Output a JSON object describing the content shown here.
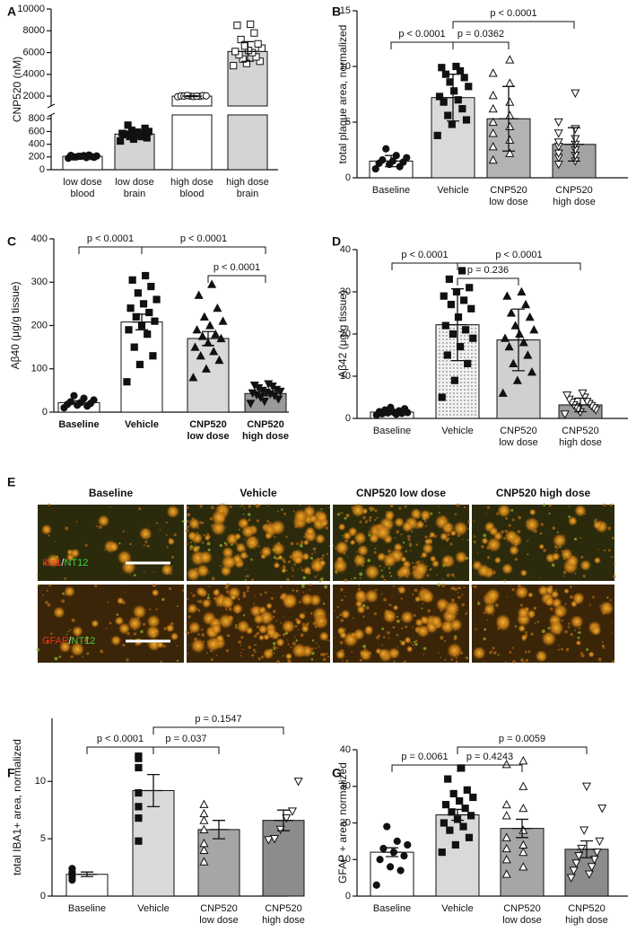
{
  "chart_data": [
    {
      "type": "bar",
      "panel_label": "A",
      "ylabel": "CNP520 (nM)",
      "categories": [
        [
          "low dose",
          "blood"
        ],
        [
          "low dose",
          "brain"
        ],
        [
          "high dose",
          "blood"
        ],
        [
          "high dose",
          "brain"
        ]
      ],
      "values": [
        210,
        560,
        2000,
        6100
      ],
      "errors": [
        20,
        60,
        40,
        900
      ],
      "colors": [
        "#ffffff",
        "#d4d4d4",
        "#ffffff",
        "#d4d4d4"
      ],
      "markers": [
        {
          "shape": "circle",
          "filled": true
        },
        {
          "shape": "square",
          "filled": true
        },
        {
          "shape": "circle",
          "filled": false
        },
        {
          "shape": "square",
          "filled": false
        }
      ],
      "points": [
        [
          180,
          190,
          200,
          205,
          210,
          215,
          220,
          225,
          230,
          200,
          195,
          210
        ],
        [
          450,
          480,
          500,
          520,
          540,
          550,
          560,
          570,
          580,
          600,
          620,
          650,
          700,
          520,
          560,
          590
        ],
        [
          1950,
          1980,
          2000,
          2020,
          2050,
          1970,
          2010,
          2030,
          1990,
          2060
        ],
        [
          4800,
          5000,
          5200,
          5400,
          5600,
          5800,
          6000,
          6100,
          6200,
          6400,
          6600,
          6800,
          7200,
          7800,
          8500,
          8600
        ]
      ],
      "segments": [
        {
          "ylim": [
            0,
            860
          ],
          "yticks": [
            0,
            200,
            400,
            600,
            800
          ]
        },
        {
          "ylim": [
            1100,
            10000
          ],
          "yticks": [
            2000,
            4000,
            6000,
            8000,
            10000
          ]
        }
      ],
      "brackets": []
    },
    {
      "type": "bar",
      "panel_label": "B",
      "ylabel": "total plaque area, normalized",
      "categories": [
        [
          "Baseline"
        ],
        [
          "Vehicle"
        ],
        [
          "CNP520",
          "low dose"
        ],
        [
          "CNP520",
          "high dose"
        ]
      ],
      "values": [
        1.5,
        7.2,
        5.3,
        3.0
      ],
      "errors": [
        0.5,
        2.1,
        2.9,
        1.5
      ],
      "colors": [
        "#ffffff",
        "#d9d9d9",
        "#b3b3b3",
        "#a3a3a3"
      ],
      "markers": [
        {
          "shape": "circle",
          "filled": true
        },
        {
          "shape": "square",
          "filled": true
        },
        {
          "shape": "triangle-up",
          "filled": false
        },
        {
          "shape": "triangle-down",
          "filled": false
        }
      ],
      "points": [
        [
          0.8,
          1.0,
          1.2,
          1.3,
          1.4,
          1.5,
          1.6,
          1.8,
          2.0,
          2.6
        ],
        [
          3.8,
          4.8,
          5.2,
          5.6,
          6.2,
          6.8,
          7.0,
          7.3,
          7.8,
          8.2,
          8.6,
          9.0,
          9.3,
          9.6,
          9.9,
          10.0
        ],
        [
          1.6,
          2.2,
          2.8,
          3.4,
          4.0,
          4.6,
          5.0,
          5.6,
          6.2,
          6.8,
          7.4,
          8.5,
          9.4,
          10.6
        ],
        [
          1.2,
          1.5,
          1.8,
          2.0,
          2.2,
          2.5,
          2.8,
          3.0,
          3.2,
          3.5,
          4.0,
          4.4,
          5.0,
          7.6
        ]
      ],
      "ylim": [
        0,
        15
      ],
      "yticks": [
        0,
        5,
        10,
        15
      ],
      "brackets": [
        {
          "pair": [
            0,
            1
          ],
          "label": "p < 0.0001"
        },
        {
          "pair": [
            1,
            2
          ],
          "label": "p = 0.0362"
        },
        {
          "pair": [
            1,
            3
          ],
          "label": "p < 0.0001"
        }
      ]
    },
    {
      "type": "bar",
      "panel_label": "C",
      "ylabel": "Aβ40 (μg/g tissue)",
      "bold_categories": true,
      "categories": [
        [
          "Baseline"
        ],
        [
          "Vehicle"
        ],
        [
          "CNP520",
          "low dose"
        ],
        [
          "CNP520",
          "high dose"
        ]
      ],
      "values": [
        22,
        208,
        170,
        43
      ],
      "errors": [
        4,
        18,
        16,
        5
      ],
      "colors": [
        "#ffffff",
        "#ffffff",
        "#d9d9d9",
        "#9a9a9a"
      ],
      "markers": [
        {
          "shape": "circle",
          "filled": true
        },
        {
          "shape": "square",
          "filled": true
        },
        {
          "shape": "triangle-up",
          "filled": true
        },
        {
          "shape": "triangle-down",
          "filled": true
        }
      ],
      "points": [
        [
          10,
          14,
          16,
          18,
          20,
          22,
          24,
          28,
          32,
          38
        ],
        [
          70,
          110,
          130,
          150,
          180,
          190,
          200,
          210,
          220,
          230,
          240,
          250,
          260,
          275,
          290,
          305,
          315
        ],
        [
          80,
          100,
          120,
          130,
          140,
          150,
          160,
          170,
          175,
          180,
          190,
          200,
          210,
          220,
          240,
          270,
          295
        ],
        [
          20,
          25,
          30,
          34,
          38,
          40,
          42,
          44,
          46,
          48,
          50,
          52,
          56,
          60,
          62,
          65
        ]
      ],
      "ylim": [
        0,
        400
      ],
      "yticks": [
        0,
        100,
        200,
        300,
        400
      ],
      "brackets": [
        {
          "pair": [
            0,
            1
          ],
          "label": "p < 0.0001"
        },
        {
          "pair": [
            1,
            3
          ],
          "label": "p < 0.0001"
        },
        {
          "pair": [
            2,
            3
          ],
          "label": "p < 0.0001"
        }
      ]
    },
    {
      "type": "bar",
      "panel_label": "D",
      "ylabel": "Aβ42 (μg/g tissue)",
      "categories": [
        [
          "Baseline"
        ],
        [
          "Vehicle"
        ],
        [
          "CNP520",
          "low dose"
        ],
        [
          "CNP520",
          "high dose"
        ]
      ],
      "values": [
        1.5,
        22.2,
        18.6,
        3.2
      ],
      "errors": [
        0.5,
        8.5,
        7.3,
        1.6
      ],
      "colors": [
        "#ffffff",
        "dots",
        "#d0d0d0",
        "#9a9a9a"
      ],
      "markers": [
        {
          "shape": "circle",
          "filled": true
        },
        {
          "shape": "square",
          "filled": true
        },
        {
          "shape": "triangle-up",
          "filled": true
        },
        {
          "shape": "triangle-down",
          "filled": false
        }
      ],
      "points": [
        [
          0.8,
          1.0,
          1.1,
          1.2,
          1.3,
          1.4,
          1.5,
          1.6,
          1.8,
          2.0,
          2.3,
          2.6
        ],
        [
          5,
          9,
          13,
          15,
          17,
          19,
          20,
          21,
          22,
          24,
          26,
          27,
          28,
          29,
          30,
          31,
          33,
          35
        ],
        [
          6,
          9,
          11,
          13,
          15,
          17,
          18,
          19,
          20,
          21,
          22,
          24,
          25,
          27,
          29,
          30
        ],
        [
          1,
          1.5,
          2,
          2.2,
          2.5,
          2.8,
          3,
          3.2,
          3.5,
          3.8,
          4,
          4.5,
          5,
          5.5,
          6
        ]
      ],
      "ylim": [
        0,
        40
      ],
      "yticks": [
        0,
        10,
        20,
        30,
        40
      ],
      "brackets": [
        {
          "pair": [
            0,
            1
          ],
          "label": "p < 0.0001"
        },
        {
          "pair": [
            1,
            2
          ],
          "label": "p = 0.236"
        },
        {
          "pair": [
            1,
            3
          ],
          "label": "p < 0.0001"
        }
      ]
    },
    {
      "type": "bar",
      "panel_label": "F",
      "ylabel": "total IBA1+ area, normalized",
      "categories": [
        [
          "Baseline"
        ],
        [
          "Vehicle"
        ],
        [
          "CNP520",
          "low dose"
        ],
        [
          "CNP520",
          "high dose"
        ]
      ],
      "values": [
        1.9,
        9.2,
        5.8,
        6.6
      ],
      "errors": [
        0.2,
        1.4,
        0.8,
        0.9
      ],
      "colors": [
        "#ffffff",
        "#d9d9d9",
        "#a6a6a6",
        "#8c8c8c"
      ],
      "markers": [
        {
          "shape": "circle",
          "filled": true
        },
        {
          "shape": "square",
          "filled": true
        },
        {
          "shape": "triangle-up",
          "filled": false
        },
        {
          "shape": "triangle-down",
          "filled": false
        }
      ],
      "points": [
        [
          1.4,
          1.6,
          1.8,
          1.9,
          2.0,
          2.1,
          2.4
        ],
        [
          4.8,
          6.8,
          7.8,
          9.0,
          11.2,
          12.0,
          12.2
        ],
        [
          3.0,
          4.0,
          4.6,
          5.8,
          6.6,
          7.2,
          8.0
        ],
        [
          4.9,
          5.0,
          5.8,
          6.8,
          7.4,
          10.0
        ]
      ],
      "ylim": [
        0,
        15.5
      ],
      "yticks": [
        0,
        5,
        10
      ],
      "brackets": [
        {
          "pair": [
            0,
            1
          ],
          "label": "p < 0.0001"
        },
        {
          "pair": [
            1,
            2
          ],
          "label": "p = 0.037"
        },
        {
          "pair": [
            1,
            3
          ],
          "label": "p = 0.1547"
        }
      ]
    },
    {
      "type": "bar",
      "panel_label": "G",
      "ylabel": "GFAP + area, normalized",
      "categories": [
        [
          "Baseline"
        ],
        [
          "Vehicle"
        ],
        [
          "CNP520",
          "low dose"
        ],
        [
          "CNP520",
          "high dose"
        ]
      ],
      "values": [
        12,
        22.2,
        18.5,
        12.8
      ],
      "errors": [
        1.2,
        1.5,
        2.5,
        2.3
      ],
      "colors": [
        "#ffffff",
        "#d9d9d9",
        "#a6a6a6",
        "#8c8c8c"
      ],
      "markers": [
        {
          "shape": "circle",
          "filled": true
        },
        {
          "shape": "square",
          "filled": true
        },
        {
          "shape": "triangle-up",
          "filled": false
        },
        {
          "shape": "triangle-down",
          "filled": false
        }
      ],
      "points": [
        [
          3,
          7,
          8,
          10,
          11,
          12,
          13,
          14,
          15,
          19
        ],
        [
          12,
          14,
          16,
          18,
          19,
          20,
          21,
          22,
          23,
          24,
          25,
          26,
          27,
          28,
          29,
          32,
          35
        ],
        [
          6,
          8,
          10,
          12,
          13,
          14,
          16,
          18,
          22,
          24,
          25,
          30,
          36,
          37
        ],
        [
          5,
          6,
          7,
          8,
          9,
          10,
          11,
          12,
          13,
          15,
          18,
          24,
          30
        ]
      ],
      "ylim": [
        0,
        40
      ],
      "yticks": [
        0,
        10,
        20,
        30,
        40
      ],
      "brackets": [
        {
          "pair": [
            0,
            1
          ],
          "label": "p = 0.0061"
        },
        {
          "pair": [
            1,
            2
          ],
          "label": "p = 0.4243"
        },
        {
          "pair": [
            1,
            3
          ],
          "label": "p = 0.0059"
        }
      ]
    }
  ],
  "image_panel": {
    "panel_label": "E",
    "columns": [
      "Baseline",
      "Vehicle",
      "CNP520 low dose",
      "CNP520 high dose"
    ],
    "rows": [
      [
        "Iba1",
        "/",
        "NT12"
      ],
      [
        "GFAP",
        "/",
        "NT12"
      ]
    ]
  }
}
